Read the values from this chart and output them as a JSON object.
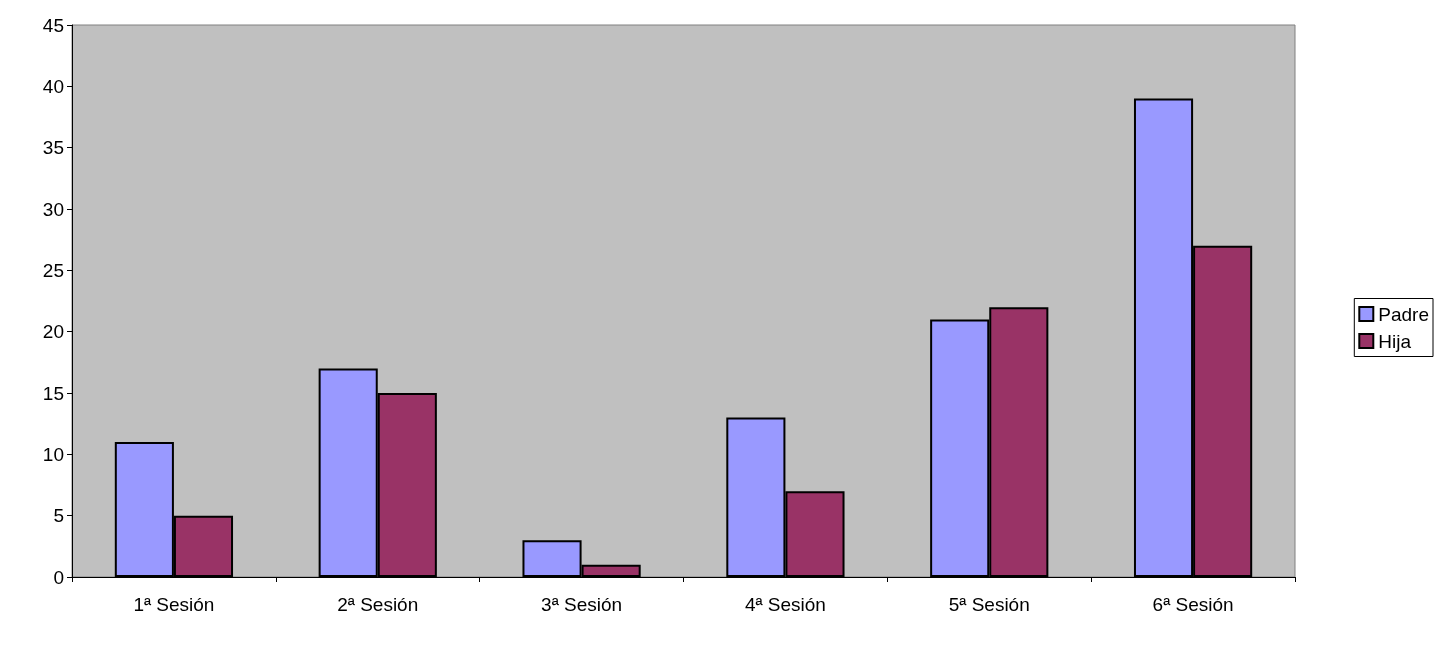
{
  "chart_data": {
    "type": "bar",
    "categories": [
      "1ª Sesión",
      "2ª Sesión",
      "3ª Sesión",
      "4ª Sesión",
      "5ª Sesión",
      "6ª Sesión"
    ],
    "series": [
      {
        "name": "Padre",
        "color": "#9999ff",
        "values": [
          11,
          17,
          3,
          13,
          21,
          39
        ]
      },
      {
        "name": "Hija",
        "color": "#993366",
        "values": [
          5,
          15,
          1,
          7,
          22,
          27
        ]
      }
    ],
    "ylim": [
      0,
      45
    ],
    "yticks": [
      0,
      5,
      10,
      15,
      20,
      25,
      30,
      35,
      40,
      45
    ],
    "grid": false,
    "legend": "right"
  }
}
